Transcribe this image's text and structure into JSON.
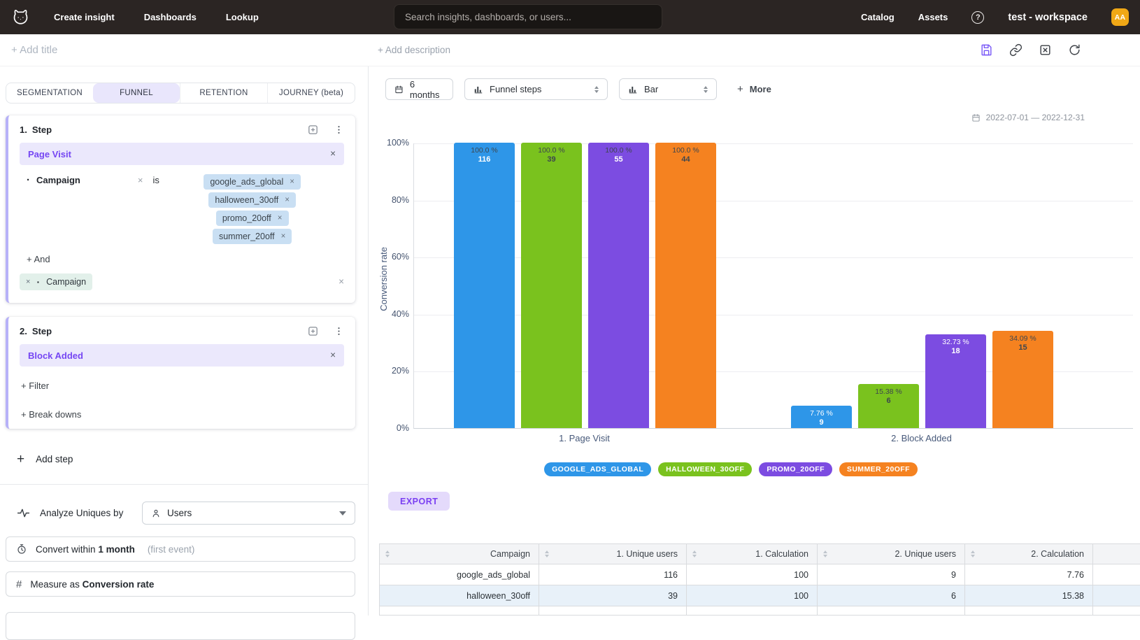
{
  "topnav": {
    "items": [
      {
        "label": "Create insight"
      },
      {
        "label": "Dashboards"
      },
      {
        "label": "Lookup"
      }
    ],
    "search_placeholder": "Search insights, dashboards, or users...",
    "right_items": [
      {
        "label": "Catalog"
      },
      {
        "label": "Assets"
      }
    ],
    "workspace": "test - workspace",
    "avatar_initials": "AA",
    "avatar_color": "#f0a816"
  },
  "titlebar": {
    "add_title": "+ Add title",
    "add_description": "+ Add description"
  },
  "builder": {
    "tabs": [
      {
        "label": "SEGMENTATION"
      },
      {
        "label": "FUNNEL"
      },
      {
        "label": "RETENTION"
      },
      {
        "label": "JOURNEY (beta)"
      }
    ],
    "steps": [
      {
        "index": "1.",
        "title": "Step",
        "event": "Page Visit",
        "filter": {
          "name": "Campaign",
          "operator": "is",
          "values": [
            "google_ads_global",
            "halloween_30off",
            "promo_20off",
            "summer_20off"
          ]
        },
        "and_label": "+ And",
        "breakdown": "Campaign"
      },
      {
        "index": "2.",
        "title": "Step",
        "event": "Block Added",
        "filter_label": "+ Filter",
        "breakdowns_label": "+ Break downs"
      }
    ],
    "add_step_label": "Add step",
    "analyze": {
      "label": "Analyze Uniques by",
      "value": "Users"
    },
    "convert": {
      "prefix": "Convert within",
      "value": "1 month",
      "suffix": "(first event)"
    },
    "measure": {
      "prefix": "Measure as",
      "value": "Conversion rate"
    }
  },
  "chart_controls": {
    "date_range_button": "6 months",
    "view_select": "Funnel steps",
    "type_select": "Bar",
    "more_label": "More",
    "date_range": "2022-07-01 — 2022-12-31"
  },
  "chart_data": {
    "type": "bar",
    "ylabel": "Conversion rate",
    "ylim": [
      0,
      100
    ],
    "yticks": [
      "100%",
      "80%",
      "60%",
      "40%",
      "20%",
      "0%"
    ],
    "grid": true,
    "legend_position": "bottom",
    "categories": [
      "1. Page Visit",
      "2. Block Added"
    ],
    "series": [
      {
        "name": "GOOGLE_ADS_GLOBAL",
        "color": "#2e96e8",
        "values": [
          100.0,
          7.76
        ],
        "counts": [
          116,
          9
        ]
      },
      {
        "name": "HALLOWEEN_30OFF",
        "color": "#7ac21e",
        "values": [
          100.0,
          15.38
        ],
        "counts": [
          39,
          6
        ]
      },
      {
        "name": "PROMO_20OFF",
        "color": "#7c4ce1",
        "values": [
          100.0,
          32.73
        ],
        "counts": [
          55,
          18
        ]
      },
      {
        "name": "SUMMER_20OFF",
        "color": "#f58220",
        "values": [
          100.0,
          34.09
        ],
        "counts": [
          44,
          15
        ]
      }
    ],
    "pct_labels": [
      [
        "100.0 %",
        "100.0 %",
        "100.0 %",
        "100.0 %"
      ],
      [
        "7.76 %",
        "15.38 %",
        "32.73 %",
        "34.09 %"
      ]
    ],
    "count_labels": [
      [
        "116",
        "39",
        "55",
        "44"
      ],
      [
        "9",
        "6",
        "18",
        "15"
      ]
    ],
    "pct_styles": [
      [
        "dark",
        "dark",
        "dark",
        "dark"
      ],
      [
        "light",
        "dark",
        "light",
        "dark"
      ]
    ],
    "count_styles": [
      [
        "light",
        "dark",
        "light",
        "dark"
      ],
      [
        "light",
        "dark",
        "light",
        "dark"
      ]
    ]
  },
  "export_label": "EXPORT",
  "table": {
    "columns": [
      "Campaign",
      "1. Unique users",
      "1. Calculation",
      "2. Unique users",
      "2. Calculation"
    ],
    "rows": [
      [
        "google_ads_global",
        "116",
        "100",
        "9",
        "7.76"
      ],
      [
        "halloween_30off",
        "39",
        "100",
        "6",
        "15.38"
      ]
    ]
  }
}
